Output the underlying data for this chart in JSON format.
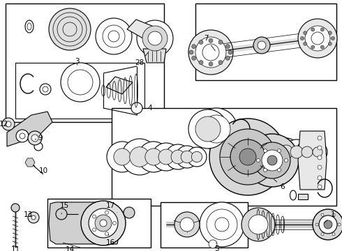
{
  "bg": "#ffffff",
  "lc": "#000000",
  "figsize": [
    4.9,
    3.6
  ],
  "dpi": 100,
  "xlim": [
    0,
    490
  ],
  "ylim": [
    0,
    360
  ]
}
